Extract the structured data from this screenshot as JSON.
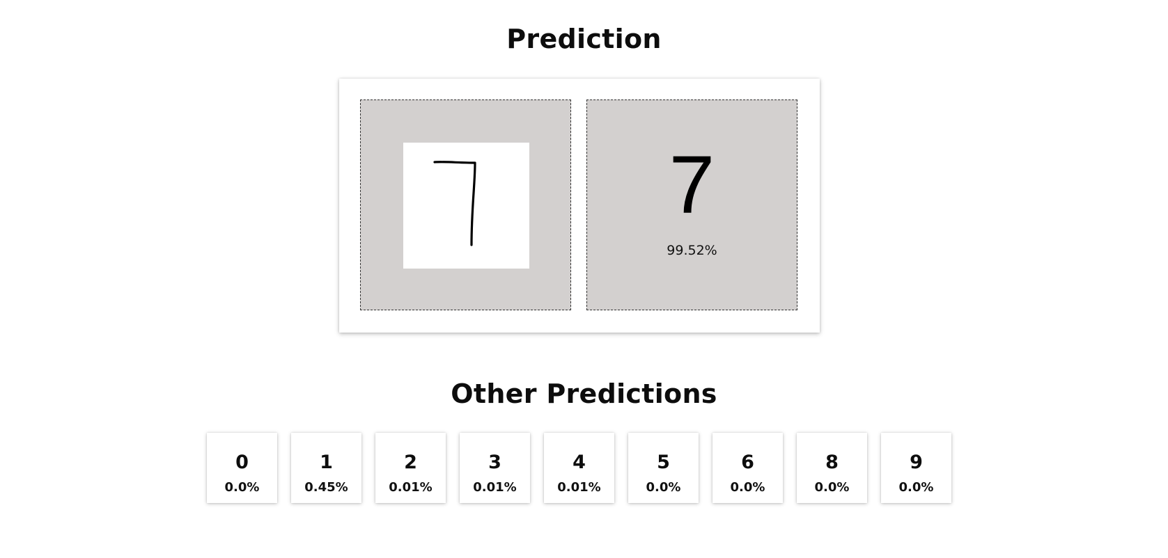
{
  "prediction": {
    "heading": "Prediction",
    "digit": "7",
    "confidence": "99.52%"
  },
  "canvas": {
    "drawn_digit": "7"
  },
  "other_predictions": {
    "heading": "Other Predictions",
    "items": [
      {
        "digit": "0",
        "percent": "0.0%"
      },
      {
        "digit": "1",
        "percent": "0.45%"
      },
      {
        "digit": "2",
        "percent": "0.01%"
      },
      {
        "digit": "3",
        "percent": "0.01%"
      },
      {
        "digit": "4",
        "percent": "0.01%"
      },
      {
        "digit": "5",
        "percent": "0.0%"
      },
      {
        "digit": "6",
        "percent": "0.0%"
      },
      {
        "digit": "8",
        "percent": "0.0%"
      },
      {
        "digit": "9",
        "percent": "0.0%"
      }
    ]
  }
}
